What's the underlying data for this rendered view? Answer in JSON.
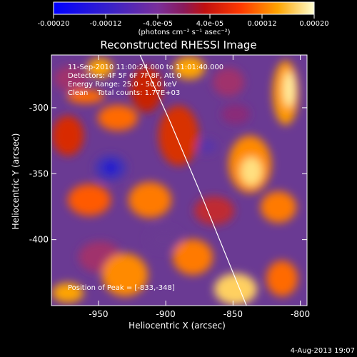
{
  "chart_data": {
    "type": "heatmap",
    "title": "Reconstructed RHESSI Image",
    "xlabel": "Heliocentric X (arcsec)",
    "ylabel": "Heliocentric Y (arcsec)",
    "xlim": [
      -985,
      -795
    ],
    "ylim": [
      -450,
      -260
    ],
    "x_ticks": [
      -950,
      -900,
      -850,
      -800
    ],
    "x_tick_labels": [
      "-950",
      "-900",
      "-850",
      "-800"
    ],
    "y_ticks": [
      -300,
      -350,
      -400
    ],
    "y_tick_labels": [
      "-300",
      "-350",
      "-400"
    ],
    "colorbar": {
      "range": [
        -0.0002,
        0.0002
      ],
      "ticks": [
        -0.0002,
        -0.00012,
        -4e-05,
        4e-05,
        0.00012,
        0.0002
      ],
      "tick_labels": [
        "-0.00020",
        "-0.00012",
        "-4.0e-05",
        "4.0e-05",
        "0.00012",
        "0.00020"
      ],
      "unit_label": "(photons cm⁻² s⁻¹ asec⁻²)"
    },
    "annotations": [
      "11-Sep-2010 11:00:24.000 to 11:01:40.000",
      "Detectors: 4F 5F 6F 7F 8F, Att 0",
      "Energy Range: 25.0 - 50.0 keV",
      "Clean    Total counts: 1.77E+03"
    ],
    "peak_label": "Position of Peak = [-833,-348]",
    "limb_curve": [
      [
        -920,
        -258
      ],
      [
        -897,
        -310
      ],
      [
        -872,
        -370
      ],
      [
        -840,
        -450
      ]
    ],
    "colors": {
      "background": "#000000",
      "text": "#ffffff",
      "limb": "#ffffff"
    }
  },
  "footer": {
    "date": "4-Aug-2013 19:07"
  }
}
